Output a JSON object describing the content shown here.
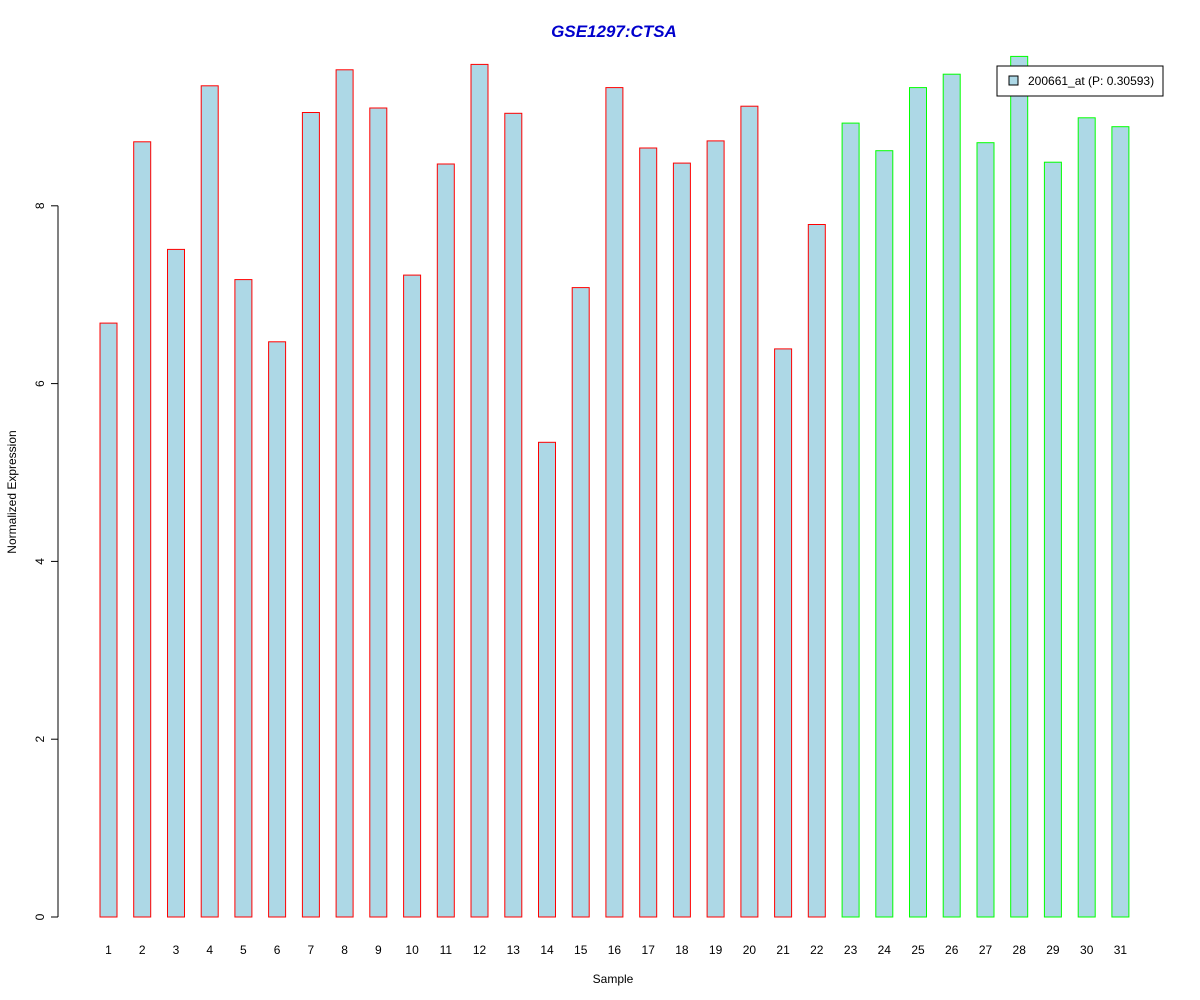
{
  "chart_data": {
    "type": "bar",
    "title": "GSE1297:CTSA",
    "xlabel": "Sample",
    "ylabel": "Normalized Expression",
    "ylim": [
      0,
      9.7
    ],
    "yticks": [
      0,
      2,
      4,
      6,
      8
    ],
    "grid": false,
    "legend": {
      "placement": "top-right",
      "entries": [
        "200661_at (P: 0.30593)"
      ]
    },
    "colors": {
      "bar_fill": "#add8e6",
      "group1_border": "#ff0000",
      "group2_border": "#00ff00",
      "title": "#0000cc",
      "legend_border": "#000000"
    },
    "categories": [
      "1",
      "2",
      "3",
      "4",
      "5",
      "6",
      "7",
      "8",
      "9",
      "10",
      "11",
      "12",
      "13",
      "14",
      "15",
      "16",
      "17",
      "18",
      "19",
      "20",
      "21",
      "22",
      "23",
      "24",
      "25",
      "26",
      "27",
      "28",
      "29",
      "30",
      "31"
    ],
    "groups": [
      1,
      1,
      1,
      1,
      1,
      1,
      1,
      1,
      1,
      1,
      1,
      1,
      1,
      1,
      1,
      1,
      1,
      1,
      1,
      1,
      1,
      1,
      2,
      2,
      2,
      2,
      2,
      2,
      2,
      2,
      2
    ],
    "series": [
      {
        "name": "200661_at (P: 0.30593)",
        "values": [
          6.68,
          8.72,
          7.51,
          9.35,
          7.17,
          6.47,
          9.05,
          9.53,
          9.1,
          7.22,
          8.47,
          9.59,
          9.04,
          5.34,
          7.08,
          9.33,
          8.65,
          8.48,
          8.73,
          9.12,
          6.39,
          7.79,
          8.93,
          8.62,
          9.33,
          9.48,
          8.71,
          9.68,
          8.49,
          8.99,
          8.89
        ]
      }
    ]
  }
}
